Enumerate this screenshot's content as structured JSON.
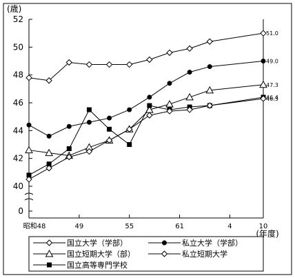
{
  "chart_data": {
    "type": "line",
    "ylabel": "(歳)",
    "xlabel": "(年度)",
    "y_ticks": [
      "52",
      "50",
      "48",
      "46",
      "44",
      "42",
      "40",
      "0"
    ],
    "x_tick_labels": [
      "昭和48",
      "49",
      "55",
      "61",
      "4",
      "10"
    ],
    "ylim": [
      40,
      52
    ],
    "axis_break": true,
    "grid": false,
    "legend_position": "bottom",
    "x_index_range": [
      0,
      14
    ],
    "x_tick_index": [
      0,
      3,
      6,
      9,
      12,
      14
    ],
    "series": [
      {
        "name": "私立短期大学",
        "marker": "diamond-open",
        "values": [
          47.8,
          47.6,
          48.9,
          48.75,
          48.75,
          48.75,
          49.1,
          49.6,
          49.9,
          50.4,
          51.0
        ],
        "x_index": [
          0,
          1.2,
          2.4,
          3.6,
          4.8,
          6.0,
          7.2,
          8.4,
          9.6,
          10.8,
          14
        ],
        "end_label": "51.0"
      },
      {
        "name": "私立大学（学部）",
        "marker": "circle-filled",
        "values": [
          44.4,
          43.6,
          44.3,
          44.6,
          44.9,
          45.5,
          46.4,
          47.4,
          48.2,
          48.6,
          49.0
        ],
        "x_index": [
          0,
          1.2,
          2.4,
          3.6,
          4.8,
          6.0,
          7.2,
          8.4,
          9.6,
          10.8,
          14
        ],
        "end_label": "49.0"
      },
      {
        "name": "国立短期大学（部）",
        "marker": "triangle-open",
        "values": [
          42.6,
          42.4,
          42.2,
          42.8,
          43.3,
          44.1,
          45.5,
          45.9,
          46.4,
          46.9,
          47.3
        ],
        "x_index": [
          0,
          1.2,
          2.4,
          3.6,
          4.8,
          6.0,
          7.2,
          8.4,
          9.6,
          10.8,
          14
        ],
        "end_label": "47.3"
      },
      {
        "name": "国立高等専門学校",
        "marker": "square-filled",
        "values": [
          40.8,
          41.6,
          42.7,
          45.5,
          44.1,
          43.0,
          45.8,
          45.5,
          45.7,
          45.8,
          46.4
        ],
        "x_index": [
          0,
          1.2,
          2.4,
          3.6,
          4.8,
          6.0,
          7.2,
          8.4,
          9.6,
          10.8,
          14
        ],
        "end_label": "46.4"
      },
      {
        "name": "国立大学（学部）",
        "marker": "diamond-open",
        "values": [
          40.5,
          41.3,
          42.1,
          42.5,
          43.3,
          44.1,
          45.1,
          45.4,
          45.5,
          45.8,
          46.3
        ],
        "x_index": [
          0,
          1.2,
          2.4,
          3.6,
          4.8,
          6.0,
          7.2,
          8.4,
          9.6,
          10.8,
          14
        ],
        "end_label": "46.3"
      }
    ],
    "legend": [
      "国立大学（学部）",
      "私立大学（学部）",
      "国立短期大学（部）",
      "私立短期大学",
      "国立高等専門学校"
    ],
    "legend_markers": [
      "diamond-open",
      "circle-filled",
      "triangle-open",
      "diamond-open",
      "square-filled"
    ]
  }
}
